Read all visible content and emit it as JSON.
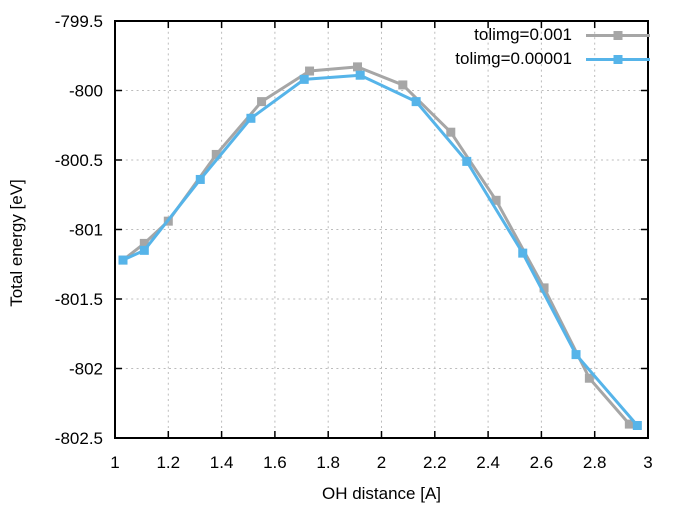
{
  "chart_data": {
    "type": "line",
    "title": "",
    "xlabel": "OH distance [A]",
    "ylabel": "Total energy [eV]",
    "xlim": [
      1,
      3
    ],
    "ylim": [
      -802.5,
      -799.5
    ],
    "grid": "dotted",
    "legend_position": "top-right-inside",
    "marker": "filled-square",
    "x_ticks": {
      "values": [
        1,
        1.2,
        1.4,
        1.6,
        1.8,
        2,
        2.2,
        2.4,
        2.6,
        2.8,
        3
      ],
      "labels": [
        "1",
        "1.2",
        "1.4",
        "1.6",
        "1.8",
        "2",
        "2.2",
        "2.4",
        "2.6",
        "2.8",
        "3"
      ]
    },
    "y_ticks": {
      "values": [
        -799.5,
        -800,
        -800.5,
        -801,
        -801.5,
        -802,
        -802.5
      ],
      "labels": [
        "-799.5",
        "-800",
        "-800.5",
        "-801",
        "-801.5",
        "-802",
        "-802.5"
      ]
    },
    "colors": {
      "axis": "#000000",
      "text": "#000000",
      "grid": "#bcbcbc",
      "background": "#ffffff"
    },
    "series": [
      {
        "name": "tolimg=0.001",
        "color": "#a6a6a6",
        "marker": "square",
        "x": [
          1.03,
          1.11,
          1.2,
          1.38,
          1.55,
          1.73,
          1.91,
          2.08,
          2.26,
          2.43,
          2.61,
          2.78,
          2.93
        ],
        "y": [
          -801.22,
          -801.1,
          -800.94,
          -800.46,
          -800.08,
          -799.86,
          -799.83,
          -799.96,
          -800.3,
          -800.79,
          -801.42,
          -802.07,
          -802.4
        ]
      },
      {
        "name": "tolimg=0.00001",
        "color": "#56b4e9",
        "marker": "square",
        "x": [
          1.03,
          1.11,
          1.32,
          1.51,
          1.71,
          1.92,
          2.13,
          2.32,
          2.53,
          2.73,
          2.96
        ],
        "y": [
          -801.22,
          -801.15,
          -800.64,
          -800.2,
          -799.92,
          -799.89,
          -800.08,
          -800.51,
          -801.17,
          -801.9,
          -802.41
        ]
      }
    ]
  }
}
